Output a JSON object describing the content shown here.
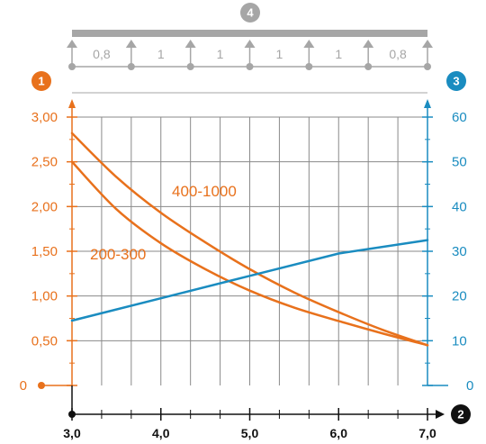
{
  "colors": {
    "orange": "#e8711c",
    "blue": "#1a8cc0",
    "grey": "#a6a6a6",
    "grid": "#8a8a8a",
    "black": "#111111"
  },
  "chart_data": {
    "type": "line",
    "x_ticks": [
      "3,0",
      "4,0",
      "5,0",
      "6,0",
      "7,0"
    ],
    "x_tick_values": [
      3,
      4,
      5,
      6,
      7
    ],
    "xlim": [
      3,
      7
    ],
    "y_left_ticks": [
      "0",
      "0,50",
      "1,00",
      "1,50",
      "2,00",
      "2,50",
      "3,00"
    ],
    "y_left_tick_values": [
      0,
      0.5,
      1,
      1.5,
      2,
      2.5,
      3
    ],
    "ylim_left": [
      0,
      3
    ],
    "y_right_ticks": [
      "0",
      "10",
      "20",
      "30",
      "40",
      "50",
      "60"
    ],
    "y_right_tick_values": [
      0,
      10,
      20,
      30,
      40,
      50,
      60
    ],
    "ylim_right": [
      0,
      60
    ],
    "grid": true,
    "badges": {
      "y_left": "1",
      "x": "2",
      "y_right": "3",
      "span": "4"
    },
    "span_labels": [
      "0,8",
      "1",
      "1",
      "1",
      "1",
      "0,8"
    ],
    "series": [
      {
        "name": "400-1000",
        "axis": "left",
        "color": "#e8711c",
        "x": [
          3.0,
          3.5,
          4.0,
          4.5,
          5.0,
          5.5,
          6.0,
          6.5,
          7.0
        ],
        "y": [
          2.82,
          2.33,
          1.93,
          1.6,
          1.3,
          1.04,
          0.82,
          0.62,
          0.45
        ]
      },
      {
        "name": "200-300",
        "axis": "left",
        "color": "#e8711c",
        "x": [
          3.0,
          3.5,
          4.0,
          4.5,
          5.0,
          5.5,
          6.0,
          6.5,
          7.0
        ],
        "y": [
          2.5,
          1.97,
          1.59,
          1.3,
          1.06,
          0.87,
          0.72,
          0.58,
          0.45
        ]
      },
      {
        "name": "",
        "axis": "right",
        "color": "#1a8cc0",
        "x": [
          3.0,
          4.0,
          5.0,
          6.0,
          7.0
        ],
        "y": [
          14.5,
          19.5,
          24.5,
          29.5,
          32.5
        ]
      }
    ]
  }
}
